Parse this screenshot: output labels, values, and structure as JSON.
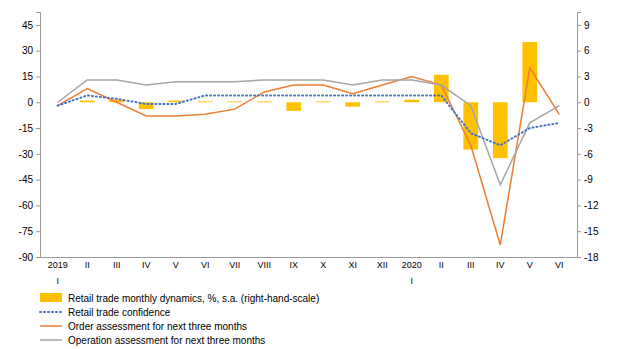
{
  "chart_data": {
    "type": "line",
    "categories": [
      "2019",
      "II",
      "III",
      "IV",
      "V",
      "VI",
      "VII",
      "VIII",
      "IX",
      "X",
      "XI",
      "XII",
      "2020",
      "II",
      "III",
      "IV",
      "V",
      "VI"
    ],
    "annotations": [
      {
        "text": "I",
        "x": "2019"
      },
      {
        "text": "I",
        "x": "2020"
      }
    ],
    "series": [
      {
        "name": "Retail trade monthly dynamics, %, s.a. (right-hand-scale)",
        "type": "bar",
        "axis": "y2",
        "color": "#FFC000",
        "values": [
          0,
          0.2,
          0.3,
          -0.8,
          0.2,
          0.1,
          0.1,
          0.1,
          -1.0,
          0.1,
          -0.5,
          0.1,
          0.3,
          3.2,
          -5.5,
          -6.5,
          7.0,
          0
        ]
      },
      {
        "name": "Retail trade confidence",
        "type": "line",
        "color": "#4472C4",
        "line_style": "dotted",
        "values": [
          -2,
          4,
          2,
          -1,
          -1,
          4,
          4,
          4,
          4,
          4,
          4,
          4,
          4,
          4,
          -18,
          -25,
          -15,
          -12
        ]
      },
      {
        "name": "Order assessment for next three months",
        "type": "line",
        "color": "#ED7D31",
        "line_style": "solid",
        "values": [
          -2,
          8,
          0,
          -8,
          -8,
          -7,
          -4,
          6,
          10,
          10,
          5,
          10,
          15,
          10,
          -25,
          -83,
          20,
          -7
        ]
      },
      {
        "name": "Operation assessment for next three months",
        "type": "line",
        "color": "#A5A5A5",
        "line_style": "solid",
        "values": [
          0,
          13,
          13,
          10,
          12,
          12,
          12,
          13,
          13,
          13,
          10,
          13,
          13,
          10,
          -2,
          -48,
          -12,
          -2
        ]
      }
    ],
    "ylim": [
      -90,
      52.5
    ],
    "yticks": [
      -90,
      -75,
      -60,
      -45,
      -30,
      -15,
      0,
      15,
      30,
      45
    ],
    "y2lim": [
      -18,
      10.5
    ],
    "y2ticks": [
      -18,
      -15,
      -12,
      -9,
      -6,
      -3,
      0,
      3,
      6,
      9
    ],
    "grid": false,
    "legend": "bottom"
  }
}
